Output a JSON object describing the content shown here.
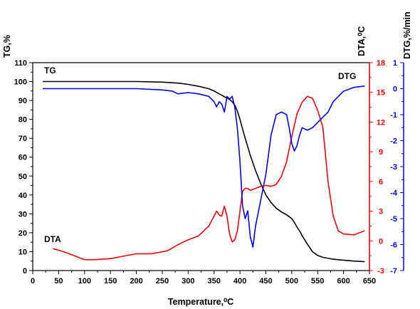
{
  "chart_data": {
    "type": "line",
    "xlabel": "Temperature,⁰C",
    "xlim": [
      0,
      650
    ],
    "xticks": [
      0,
      50,
      100,
      150,
      200,
      250,
      300,
      350,
      400,
      450,
      500,
      550,
      600,
      650
    ],
    "axes": {
      "tg": {
        "label": "TG,%",
        "range": [
          0,
          110
        ],
        "ticks": [
          0,
          10,
          20,
          30,
          40,
          50,
          60,
          70,
          80,
          90,
          100,
          110
        ],
        "color": "#000000"
      },
      "dta": {
        "label": "DTA,⁰C",
        "range": [
          -3,
          18
        ],
        "ticks": [
          -3,
          0,
          3,
          6,
          9,
          12,
          15,
          18
        ],
        "color": "#ff0000"
      },
      "dtg": {
        "label": "DTG,%/min",
        "range": [
          -7,
          1
        ],
        "ticks": [
          -7,
          -6,
          -5,
          -4,
          -3,
          -2,
          -1,
          0,
          1
        ],
        "color": "#0000ff"
      }
    },
    "series": [
      {
        "name": "TG",
        "axis": "tg",
        "color": "#000000",
        "x": [
          20,
          100,
          200,
          250,
          280,
          300,
          320,
          340,
          350,
          360,
          370,
          380,
          385,
          390,
          395,
          400,
          405,
          410,
          415,
          420,
          430,
          440,
          450,
          460,
          470,
          480,
          490,
          500,
          505,
          510,
          515,
          520,
          530,
          540,
          550,
          560,
          580,
          600,
          620,
          640
        ],
        "values": [
          100,
          100,
          100,
          99.7,
          99.2,
          98.5,
          97.5,
          96.2,
          95,
          93.5,
          92,
          90.5,
          89.3,
          87.5,
          84.5,
          80,
          75,
          70,
          65.5,
          61,
          53,
          46,
          40,
          36,
          33,
          31,
          29.5,
          27.5,
          25.5,
          23,
          21,
          18.5,
          14,
          10,
          8,
          7,
          6,
          5.5,
          5,
          4.7
        ]
      },
      {
        "name": "DTA",
        "axis": "dta",
        "color": "#ff0000",
        "x": [
          40,
          60,
          80,
          100,
          120,
          150,
          180,
          200,
          230,
          260,
          280,
          300,
          320,
          340,
          350,
          355,
          360,
          365,
          370,
          375,
          380,
          385,
          390,
          395,
          400,
          405,
          410,
          415,
          420,
          430,
          440,
          450,
          460,
          470,
          480,
          490,
          500,
          510,
          520,
          530,
          540,
          550,
          560,
          570,
          580,
          590,
          600,
          620,
          640
        ],
        "values": [
          -0.8,
          -1.1,
          -1.5,
          -1.9,
          -1.9,
          -1.8,
          -1.5,
          -1.3,
          -1.3,
          -1.0,
          -0.4,
          0.1,
          0.5,
          1.5,
          2.5,
          3.0,
          2.6,
          2.5,
          3.5,
          2.5,
          0.7,
          -0.1,
          0.1,
          1.0,
          3.0,
          5.0,
          5.3,
          5.3,
          5.1,
          5.3,
          5.5,
          5.6,
          5.5,
          5.7,
          6.5,
          8.0,
          10.5,
          12.8,
          14.0,
          14.6,
          14.4,
          13.2,
          11.5,
          6.0,
          2.5,
          1.0,
          0.7,
          0.6,
          1.0
        ]
      },
      {
        "name": "DTG",
        "axis": "dtg",
        "color": "#0000ff",
        "x": [
          20,
          100,
          200,
          250,
          270,
          280,
          300,
          320,
          340,
          350,
          355,
          360,
          365,
          370,
          375,
          380,
          385,
          390,
          395,
          400,
          405,
          410,
          415,
          420,
          425,
          430,
          440,
          450,
          460,
          470,
          480,
          490,
          495,
          500,
          505,
          510,
          515,
          520,
          530,
          540,
          550,
          560,
          570,
          580,
          590,
          600,
          620,
          640
        ],
        "values": [
          0,
          0,
          0,
          -0.05,
          -0.1,
          -0.2,
          -0.15,
          -0.2,
          -0.3,
          -0.5,
          -0.7,
          -0.5,
          -0.6,
          -0.9,
          -0.3,
          -0.4,
          -0.3,
          -0.7,
          -1.5,
          -2.8,
          -4.5,
          -5,
          -4.7,
          -5.7,
          -6.1,
          -5.3,
          -4.3,
          -3.3,
          -1.8,
          -1,
          -0.9,
          -1,
          -1.5,
          -2.1,
          -2.4,
          -2.2,
          -1.8,
          -1.5,
          -1.6,
          -1.5,
          -1.3,
          -1.1,
          -0.9,
          -0.5,
          -0.3,
          -0.1,
          0.05,
          0.1
        ]
      }
    ],
    "annotations": [
      {
        "text": "TG",
        "series": "TG"
      },
      {
        "text": "DTA",
        "series": "DTA"
      },
      {
        "text": "DTG",
        "series": "DTG"
      }
    ],
    "grid": false
  }
}
